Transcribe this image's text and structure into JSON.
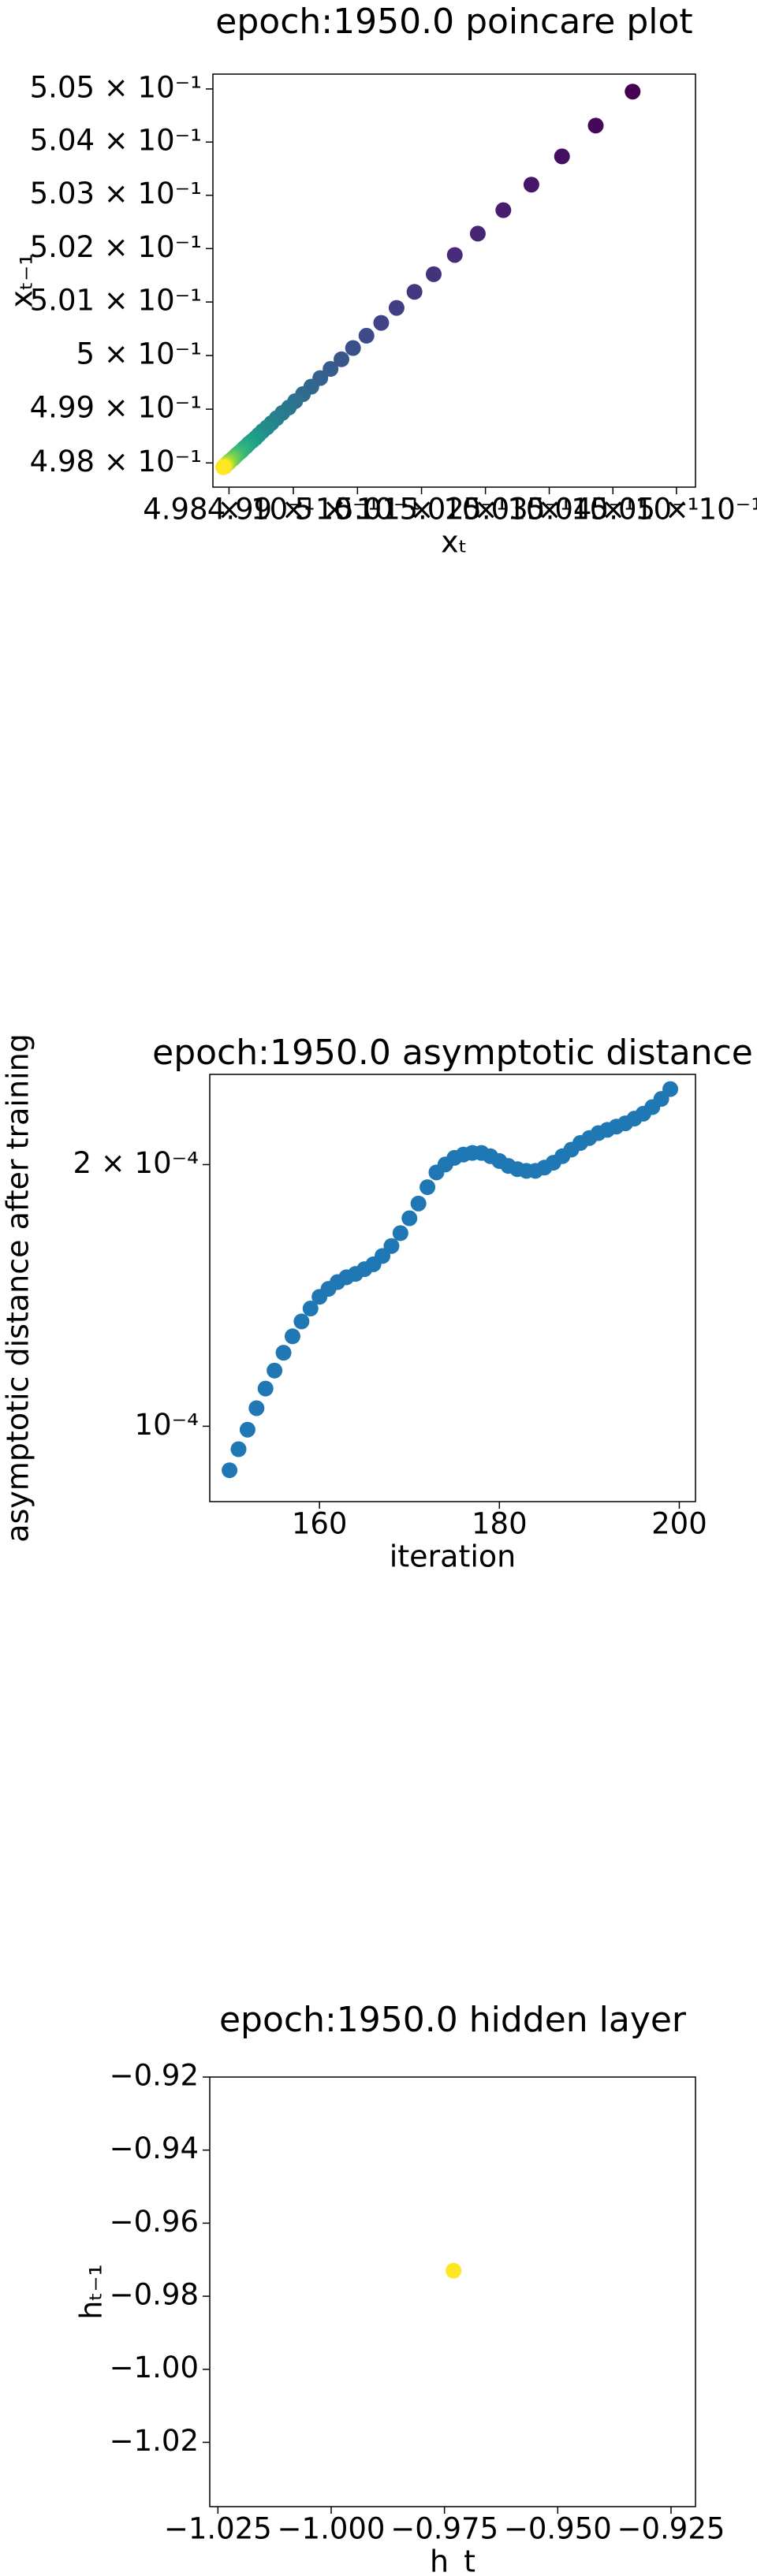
{
  "chart_data": [
    {
      "type": "scatter",
      "title": "epoch:1950.0 poincare plot",
      "x_label": "xₜ",
      "y_label": "xₜ₋₁",
      "xscale": "log",
      "yscale": "log",
      "cmap": "viridis",
      "x": [
        0.50431,
        0.50373,
        0.5032,
        0.50272,
        0.50228,
        0.50188,
        0.50152,
        0.50119,
        0.50089,
        0.50061,
        0.50037,
        0.50014,
        0.49993,
        0.49975,
        0.49958,
        0.49942,
        0.49928,
        0.49915,
        0.49903,
        0.49893,
        0.49883,
        0.49874,
        0.49866,
        0.49859,
        0.49852,
        0.49846,
        0.49841,
        0.49836,
        0.49831,
        0.49827,
        0.49823,
        0.4982,
        0.49817,
        0.49814,
        0.49811,
        0.49809,
        0.49807,
        0.49805,
        0.49803,
        0.49801,
        0.498,
        0.49798,
        0.49797,
        0.49796,
        0.49795,
        0.49794,
        0.49793,
        0.49793,
        0.49792,
        0.49791
      ],
      "values": [
        0.50495,
        0.50431,
        0.50373,
        0.5032,
        0.50272,
        0.50228,
        0.50188,
        0.50152,
        0.50119,
        0.50089,
        0.50061,
        0.50037,
        0.50014,
        0.49993,
        0.49975,
        0.49958,
        0.49942,
        0.49928,
        0.49915,
        0.49903,
        0.49893,
        0.49883,
        0.49874,
        0.49866,
        0.49859,
        0.49852,
        0.49846,
        0.49841,
        0.49836,
        0.49831,
        0.49827,
        0.49823,
        0.4982,
        0.49817,
        0.49814,
        0.49811,
        0.49809,
        0.49807,
        0.49805,
        0.49803,
        0.49801,
        0.498,
        0.49798,
        0.49797,
        0.49796,
        0.49795,
        0.49794,
        0.49793,
        0.49793,
        0.49792
      ],
      "xlim": [
        0.49775,
        0.5053
      ],
      "ylim": [
        0.49755,
        0.50528
      ],
      "xticks": [
        {
          "value": 0.498,
          "label": "4.98 × 10⁻¹"
        },
        {
          "value": 0.499,
          "label": "4.99 × 10⁻¹"
        },
        {
          "value": 0.5,
          "label": "5 × 10⁻¹"
        },
        {
          "value": 0.501,
          "label": "5.01 × 10⁻¹"
        },
        {
          "value": 0.502,
          "label": "5.02 × 10⁻¹"
        },
        {
          "value": 0.503,
          "label": "5.03 × 10⁻¹"
        },
        {
          "value": 0.504,
          "label": "5.04 × 10⁻¹"
        },
        {
          "value": 0.505,
          "label": "5.05 × 10⁻¹"
        }
      ],
      "yticks": [
        {
          "value": 0.498,
          "label": "4.98 × 10⁻¹"
        },
        {
          "value": 0.499,
          "label": "4.99 × 10⁻¹"
        },
        {
          "value": 0.5,
          "label": "5 × 10⁻¹"
        },
        {
          "value": 0.501,
          "label": "5.01 × 10⁻¹"
        },
        {
          "value": 0.502,
          "label": "5.02 × 10⁻¹"
        },
        {
          "value": 0.503,
          "label": "5.03 × 10⁻¹"
        },
        {
          "value": 0.504,
          "label": "5.04 × 10⁻¹"
        },
        {
          "value": 0.505,
          "label": "5.05 × 10⁻¹"
        }
      ]
    },
    {
      "type": "scatter",
      "title": "epoch:1950.0 asymptotic distance",
      "x_label": "iteration",
      "y_label": "asymptotic distance after training",
      "yscale": "log",
      "color": "#1f77b4",
      "x": [
        150,
        151,
        152,
        153,
        154,
        155,
        156,
        157,
        158,
        159,
        160,
        161,
        162,
        163,
        164,
        165,
        166,
        167,
        168,
        169,
        170,
        171,
        172,
        173,
        174,
        175,
        176,
        177,
        178,
        179,
        180,
        181,
        182,
        183,
        184,
        185,
        186,
        187,
        188,
        189,
        190,
        191,
        192,
        193,
        194,
        195,
        196,
        197,
        198,
        199
      ],
      "values": [
        8.9e-05,
        9.41e-05,
        9.91e-05,
        0.0001049,
        0.0001105,
        0.0001159,
        0.0001215,
        0.0001269,
        0.000132,
        0.0001366,
        0.0001409,
        0.0001439,
        0.0001465,
        0.0001484,
        0.0001497,
        0.0001516,
        0.0001536,
        0.000157,
        0.0001612,
        0.0001668,
        0.0001735,
        0.0001804,
        0.0001884,
        0.0001959,
        0.0002001,
        0.0002036,
        0.0002054,
        0.0002063,
        0.0002063,
        0.0002045,
        0.0002019,
        0.0001993,
        0.0001976,
        0.0001967,
        0.0001967,
        0.0001984,
        0.000201,
        0.0002045,
        0.0002081,
        0.0002118,
        0.0002146,
        0.0002174,
        0.0002193,
        0.0002212,
        0.0002231,
        0.0002259,
        0.0002289,
        0.0002329,
        0.000238,
        0.0002443
      ],
      "xlim": [
        147.8,
        201.8
      ],
      "ylim": [
        8.19e-05,
        0.000254
      ],
      "xticks": [
        160,
        180,
        200
      ],
      "yticks": [
        {
          "value": 0.0001,
          "label": "10⁻⁴"
        },
        {
          "value": 0.0002,
          "label": "2 × 10⁻⁴"
        }
      ]
    },
    {
      "type": "scatter",
      "title": "epoch:1950.0 hidden layer",
      "x_label": "h_t",
      "y_label": "hₜ₋₁",
      "color": "#fde725",
      "x": [
        -0.973
      ],
      "values": [
        -0.973
      ],
      "xlim": [
        -1.0268,
        -0.9196
      ],
      "ylim": [
        -1.0376,
        -0.92
      ],
      "xticks": [
        {
          "value": -1.025,
          "label": "−1.025"
        },
        {
          "value": -1.0,
          "label": "−1.000"
        },
        {
          "value": -0.975,
          "label": "−0.975"
        },
        {
          "value": -0.95,
          "label": "−0.950"
        },
        {
          "value": -0.925,
          "label": "−0.925"
        }
      ],
      "yticks": [
        {
          "value": -0.92,
          "label": "−0.92"
        },
        {
          "value": -0.94,
          "label": "−0.94"
        },
        {
          "value": -0.96,
          "label": "−0.96"
        },
        {
          "value": -0.98,
          "label": "−0.98"
        },
        {
          "value": -1.0,
          "label": "−1.00"
        },
        {
          "value": -1.02,
          "label": "−1.02"
        }
      ]
    }
  ]
}
